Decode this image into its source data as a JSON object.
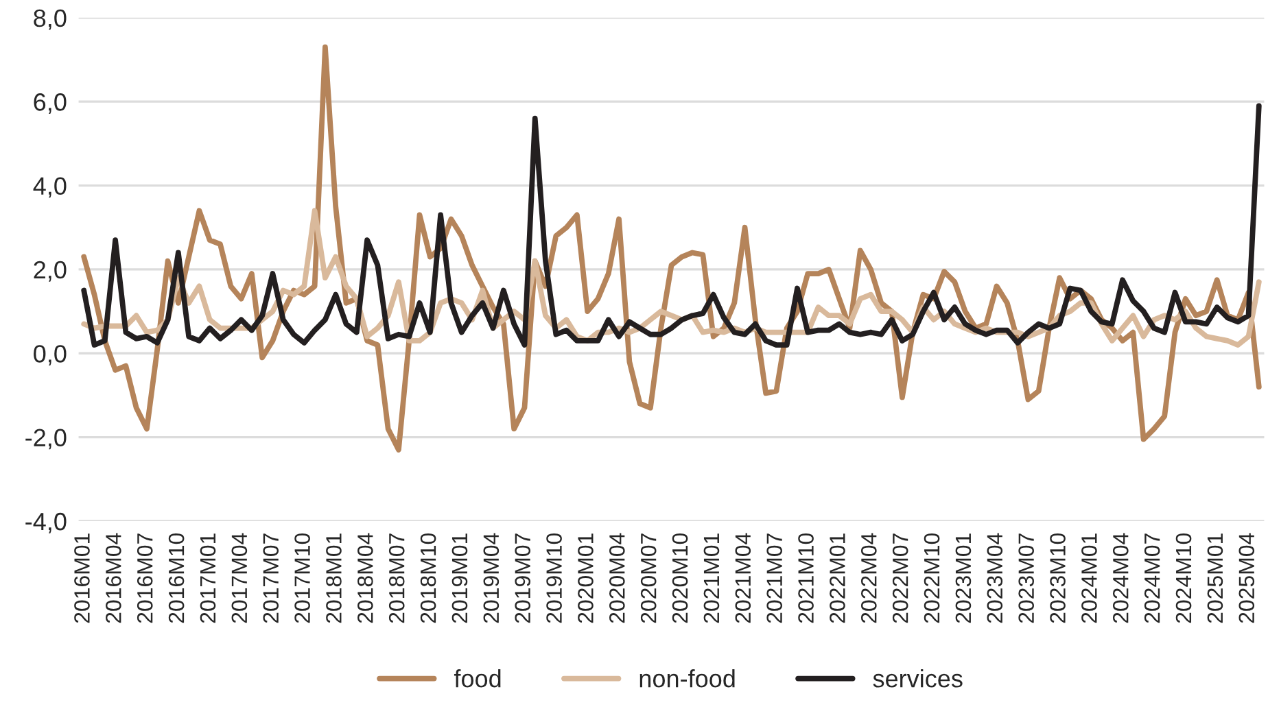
{
  "chart_data": {
    "type": "line",
    "categories": [
      "2016M01",
      null,
      null,
      "2016M04",
      null,
      null,
      "2016M07",
      null,
      null,
      "2016M10",
      null,
      null,
      "2017M01",
      null,
      null,
      "2017M04",
      null,
      null,
      "2017M07",
      null,
      null,
      "2017M10",
      null,
      null,
      "2018M01",
      null,
      null,
      "2018M04",
      null,
      null,
      "2018M07",
      null,
      null,
      "2018M10",
      null,
      null,
      "2019M01",
      null,
      null,
      "2019M04",
      null,
      null,
      "2019M07",
      null,
      null,
      "2019M10",
      null,
      null,
      "2020M01",
      null,
      null,
      "2020M04",
      null,
      null,
      "2020M07",
      null,
      null,
      "2020M10",
      null,
      null,
      "2021M01",
      null,
      null,
      "2021M04",
      null,
      null,
      "2021M07",
      null,
      null,
      "2021M10",
      null,
      null,
      "2022M01",
      null,
      null,
      "2022M04",
      null,
      null,
      "2022M07",
      null,
      null,
      "2022M10",
      null,
      null,
      "2023M01",
      null,
      null,
      "2023M04",
      null,
      null,
      "2023M07",
      null,
      null,
      "2023M10",
      null,
      null,
      "2024M01",
      null,
      null,
      "2024M04",
      null,
      null,
      "2024M07",
      null,
      null,
      "2024M10",
      null,
      null,
      "2025M01",
      null,
      null,
      "2025M04",
      null
    ],
    "series": [
      {
        "name": "food",
        "color": "#b5845a",
        "values": [
          2.3,
          1.4,
          0.3,
          -0.4,
          -0.3,
          -1.3,
          -1.8,
          0.1,
          2.2,
          1.2,
          2.3,
          3.4,
          2.7,
          2.6,
          1.6,
          1.3,
          1.9,
          -0.1,
          0.3,
          1.0,
          1.5,
          1.4,
          1.6,
          7.3,
          3.5,
          1.2,
          1.3,
          0.3,
          0.2,
          -1.8,
          -2.3,
          0.3,
          3.3,
          2.3,
          2.5,
          3.2,
          2.8,
          2.1,
          1.6,
          1.1,
          0.7,
          -1.8,
          -1.3,
          2.2,
          1.6,
          2.8,
          3.0,
          3.3,
          1.0,
          1.3,
          1.9,
          3.2,
          -0.2,
          -1.2,
          -1.3,
          0.6,
          2.1,
          2.3,
          2.4,
          2.35,
          0.4,
          0.6,
          1.2,
          3.0,
          0.8,
          -0.95,
          -0.9,
          0.6,
          1.0,
          1.9,
          1.9,
          2.0,
          1.3,
          0.6,
          2.45,
          2.0,
          1.2,
          1.0,
          -1.05,
          0.5,
          1.4,
          1.3,
          1.95,
          1.7,
          1.0,
          0.6,
          0.7,
          1.6,
          1.2,
          0.3,
          -1.1,
          -0.9,
          0.6,
          1.8,
          1.3,
          1.5,
          1.3,
          0.8,
          0.6,
          0.3,
          0.5,
          -2.05,
          -1.8,
          -1.5,
          0.5,
          1.3,
          0.9,
          1.0,
          1.75,
          0.9,
          0.8,
          1.45,
          -0.8
        ]
      },
      {
        "name": "non-food",
        "color": "#d9b99b",
        "values": [
          0.7,
          0.6,
          0.65,
          0.65,
          0.65,
          0.9,
          0.5,
          0.55,
          0.8,
          1.8,
          1.2,
          1.6,
          0.8,
          0.6,
          0.6,
          0.6,
          0.6,
          0.8,
          1.0,
          1.5,
          1.4,
          1.6,
          3.4,
          1.8,
          2.3,
          1.6,
          1.3,
          0.4,
          0.6,
          0.9,
          1.7,
          0.3,
          0.3,
          0.5,
          1.2,
          1.3,
          1.2,
          0.8,
          1.5,
          0.6,
          0.8,
          1.0,
          0.8,
          2.2,
          0.9,
          0.6,
          0.8,
          0.4,
          0.3,
          0.5,
          0.5,
          0.6,
          0.5,
          0.6,
          0.8,
          1.0,
          0.9,
          0.8,
          0.9,
          0.5,
          0.55,
          0.5,
          0.6,
          0.5,
          0.6,
          0.5,
          0.5,
          0.5,
          0.5,
          0.5,
          1.1,
          0.9,
          0.9,
          0.7,
          1.3,
          1.4,
          1.0,
          1.0,
          0.8,
          0.5,
          1.1,
          0.8,
          1.0,
          0.7,
          0.6,
          0.5,
          0.6,
          0.5,
          0.5,
          0.5,
          0.4,
          0.5,
          0.6,
          0.9,
          1.0,
          1.2,
          1.2,
          0.7,
          0.3,
          0.6,
          0.9,
          0.4,
          0.8,
          0.9,
          0.8,
          1.0,
          0.6,
          0.4,
          0.35,
          0.3,
          0.2,
          0.4,
          1.7
        ]
      },
      {
        "name": "services",
        "color": "#231f20",
        "values": [
          1.5,
          0.2,
          0.3,
          2.7,
          0.5,
          0.35,
          0.4,
          0.25,
          0.8,
          2.4,
          0.4,
          0.3,
          0.6,
          0.35,
          0.55,
          0.8,
          0.55,
          0.9,
          1.9,
          0.8,
          0.45,
          0.25,
          0.55,
          0.8,
          1.4,
          0.7,
          0.5,
          2.7,
          2.1,
          0.35,
          0.45,
          0.4,
          1.2,
          0.5,
          3.3,
          1.2,
          0.5,
          0.9,
          1.2,
          0.6,
          1.5,
          0.7,
          0.2,
          5.6,
          2.2,
          0.45,
          0.55,
          0.3,
          0.3,
          0.3,
          0.8,
          0.4,
          0.75,
          0.6,
          0.45,
          0.45,
          0.6,
          0.8,
          0.9,
          0.95,
          1.4,
          0.85,
          0.5,
          0.45,
          0.7,
          0.3,
          0.2,
          0.2,
          1.55,
          0.5,
          0.55,
          0.55,
          0.7,
          0.5,
          0.45,
          0.5,
          0.45,
          0.8,
          0.3,
          0.45,
          1.0,
          1.45,
          0.8,
          1.1,
          0.7,
          0.55,
          0.45,
          0.55,
          0.55,
          0.25,
          0.5,
          0.7,
          0.6,
          0.7,
          1.55,
          1.5,
          1.0,
          0.75,
          0.7,
          1.75,
          1.25,
          1.0,
          0.6,
          0.5,
          1.45,
          0.75,
          0.75,
          0.7,
          1.1,
          0.85,
          0.75,
          0.9,
          5.9
        ]
      }
    ],
    "ylim": [
      -4,
      8
    ],
    "yticks": [
      {
        "value": -4,
        "label": "-4,0"
      },
      {
        "value": -2,
        "label": "-2,0"
      },
      {
        "value": 0,
        "label": "0,0"
      },
      {
        "value": 2,
        "label": "2,0"
      },
      {
        "value": 4,
        "label": "4,0"
      },
      {
        "value": 6,
        "label": "6,0"
      },
      {
        "value": 8,
        "label": "8,0"
      }
    ],
    "grid": "y",
    "legend": "bottom",
    "marker": "none",
    "line_style": "solid"
  }
}
